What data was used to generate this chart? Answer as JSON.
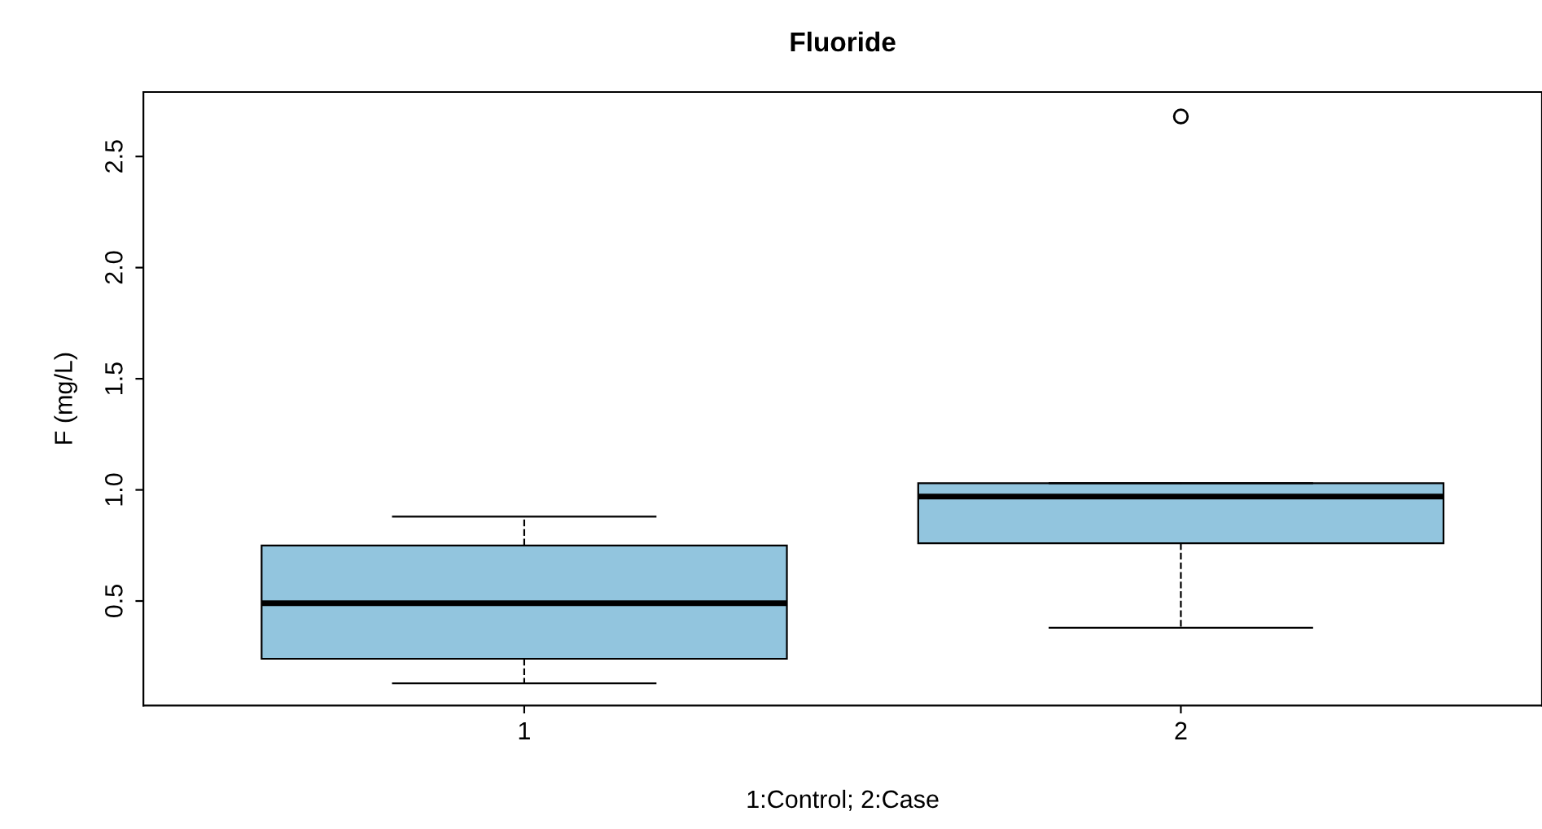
{
  "chart_data": {
    "type": "box",
    "title": "Fluoride",
    "xlabel": "1:Control; 2:Case",
    "ylabel": "F (mg/L)",
    "categories": [
      "1",
      "2"
    ],
    "boxes": [
      {
        "low": 0.13,
        "q1": 0.24,
        "median": 0.49,
        "q3": 0.75,
        "high": 0.88
      },
      {
        "low": 0.38,
        "q1": 0.76,
        "median": 0.97,
        "q3": 1.03,
        "high": 1.03,
        "outliers": [
          2.68
        ]
      }
    ],
    "color": "#92c5de",
    "ylim": [
      0.03,
      2.79
    ],
    "yticks": [
      {
        "value": 0.5,
        "label": "0.5"
      },
      {
        "value": 1.0,
        "label": "1.0"
      },
      {
        "value": 1.5,
        "label": "1.5"
      },
      {
        "value": 2.0,
        "label": "2.0"
      },
      {
        "value": 2.5,
        "label": "2.5"
      }
    ],
    "grid": false
  }
}
